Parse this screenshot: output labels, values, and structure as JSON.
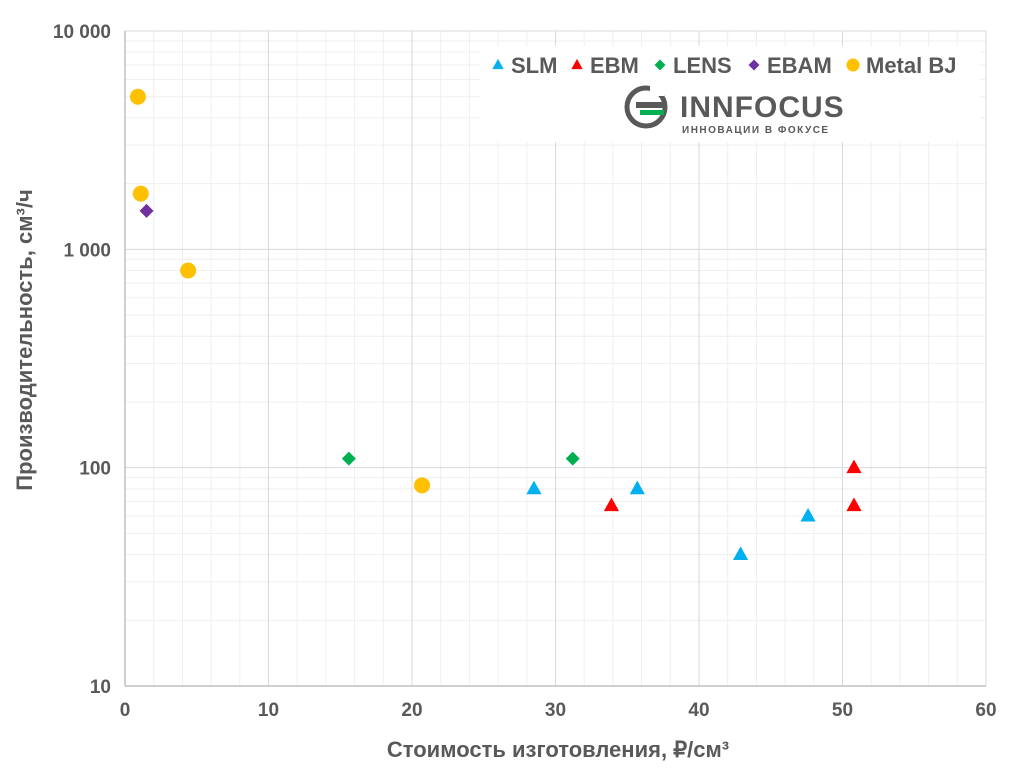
{
  "chart_data": {
    "type": "scatter",
    "xlabel": "Стоимость изготовления, ₽/см³",
    "ylabel": "Производительность, см³/ч",
    "xlim": [
      0,
      60
    ],
    "ylim": [
      10,
      10000
    ],
    "y_scale": "log",
    "x_ticks": [
      "0",
      "10",
      "20",
      "30",
      "40",
      "50",
      "60"
    ],
    "y_ticks": [
      "10",
      "100",
      "1 000",
      "10 000"
    ],
    "grid": true,
    "legend_position": "top-right",
    "series": [
      {
        "name": "SLM",
        "marker": "triangle",
        "color": "#00B0F0",
        "points": [
          [
            28.5,
            80
          ],
          [
            35.7,
            80
          ],
          [
            42.9,
            40
          ],
          [
            47.6,
            60
          ]
        ]
      },
      {
        "name": "EBM",
        "marker": "triangle",
        "color": "#FF0000",
        "points": [
          [
            33.9,
            67
          ],
          [
            50.8,
            100
          ],
          [
            50.8,
            67
          ]
        ]
      },
      {
        "name": "LENS",
        "marker": "diamond",
        "color": "#00B050",
        "points": [
          [
            15.6,
            110
          ],
          [
            31.2,
            110
          ]
        ]
      },
      {
        "name": "EBAM",
        "marker": "diamond",
        "color": "#7030A0",
        "points": [
          [
            1.5,
            1500
          ]
        ]
      },
      {
        "name": "Metal BJ",
        "marker": "circle",
        "color": "#FFC000",
        "points": [
          [
            0.9,
            5000
          ],
          [
            1.1,
            1800
          ],
          [
            4.4,
            800
          ],
          [
            20.7,
            83
          ]
        ]
      }
    ]
  },
  "logo": {
    "name": "INNFOCUS",
    "tagline": "ИННОВАЦИИ В ФОКУСЕ"
  }
}
